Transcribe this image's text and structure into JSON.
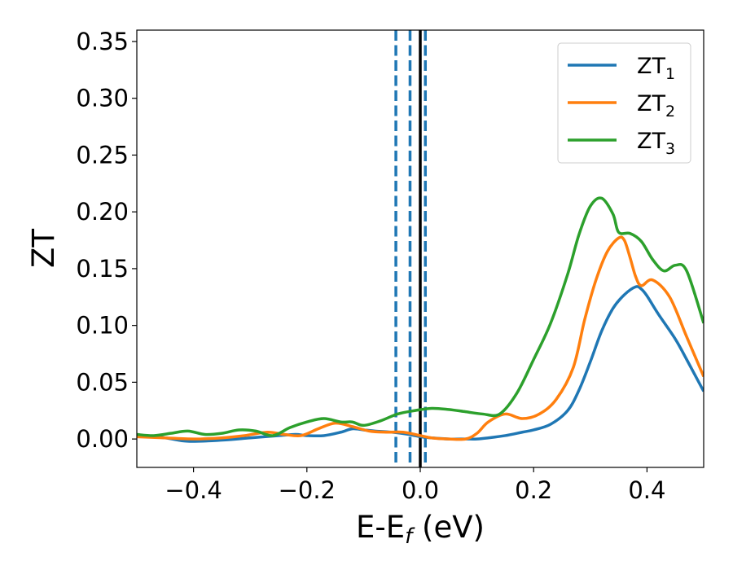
{
  "chart_data": {
    "type": "line",
    "xlabel": "E-E",
    "xlabel_subscript": "f",
    "xlabel_suffix": " (eV)",
    "ylabel": "ZT",
    "xlim": [
      -0.5,
      0.5
    ],
    "ylim": [
      -0.025,
      0.36
    ],
    "x_ticks": [
      -0.4,
      -0.2,
      0.0,
      0.2,
      0.4
    ],
    "x_tick_labels": [
      "−0.4",
      "−0.2",
      "0.0",
      "0.2",
      "0.4"
    ],
    "y_ticks": [
      0.0,
      0.05,
      0.1,
      0.15,
      0.2,
      0.25,
      0.3,
      0.35
    ],
    "y_tick_labels": [
      "0.00",
      "0.05",
      "0.10",
      "0.15",
      "0.20",
      "0.25",
      "0.30",
      "0.35"
    ],
    "grid": false,
    "legend_position": "top-right",
    "vertical_lines": [
      {
        "x": -0.043,
        "style": "dashed",
        "color": "#1f77b4"
      },
      {
        "x": -0.018,
        "style": "dashed",
        "color": "#1f77b4"
      },
      {
        "x": 0.009,
        "style": "dashed",
        "color": "#1f77b4"
      },
      {
        "x": 0.0,
        "style": "solid",
        "color": "#000000"
      }
    ],
    "series": [
      {
        "name": "ZT",
        "subscript": "1",
        "color": "#1f77b4",
        "x": [
          -0.5,
          -0.45,
          -0.41,
          -0.35,
          -0.3,
          -0.25,
          -0.22,
          -0.2,
          -0.17,
          -0.14,
          -0.12,
          -0.1,
          -0.08,
          -0.05,
          -0.02,
          0.0,
          0.02,
          0.05,
          0.08,
          0.1,
          0.12,
          0.15,
          0.18,
          0.2,
          0.23,
          0.26,
          0.28,
          0.3,
          0.32,
          0.34,
          0.36,
          0.38,
          0.39,
          0.4,
          0.42,
          0.45,
          0.47,
          0.5
        ],
        "y": [
          0.003,
          0.001,
          -0.002,
          -0.001,
          0.001,
          0.003,
          0.004,
          0.003,
          0.003,
          0.006,
          0.009,
          0.008,
          0.007,
          0.006,
          0.004,
          0.002,
          0.001,
          0.0,
          0.0,
          0.0,
          0.001,
          0.003,
          0.006,
          0.008,
          0.013,
          0.025,
          0.043,
          0.068,
          0.095,
          0.115,
          0.127,
          0.134,
          0.132,
          0.126,
          0.11,
          0.088,
          0.07,
          0.042
        ]
      },
      {
        "name": "ZT",
        "subscript": "2",
        "color": "#ff7f0e",
        "x": [
          -0.5,
          -0.45,
          -0.4,
          -0.35,
          -0.31,
          -0.27,
          -0.24,
          -0.21,
          -0.18,
          -0.15,
          -0.12,
          -0.09,
          -0.06,
          -0.03,
          0.0,
          0.02,
          0.05,
          0.08,
          0.1,
          0.12,
          0.15,
          0.18,
          0.21,
          0.24,
          0.27,
          0.29,
          0.31,
          0.33,
          0.35,
          0.36,
          0.37,
          0.38,
          0.39,
          0.41,
          0.44,
          0.47,
          0.5
        ],
        "y": [
          0.002,
          0.001,
          0.0,
          0.001,
          0.003,
          0.006,
          0.004,
          0.003,
          0.009,
          0.014,
          0.011,
          0.007,
          0.006,
          0.006,
          0.003,
          0.001,
          0.0,
          0.0,
          0.005,
          0.015,
          0.022,
          0.018,
          0.022,
          0.035,
          0.063,
          0.105,
          0.14,
          0.165,
          0.177,
          0.175,
          0.16,
          0.143,
          0.135,
          0.14,
          0.125,
          0.09,
          0.055
        ]
      },
      {
        "name": "ZT",
        "subscript": "3",
        "color": "#2ca02c",
        "x": [
          -0.5,
          -0.47,
          -0.44,
          -0.41,
          -0.38,
          -0.35,
          -0.32,
          -0.29,
          -0.26,
          -0.23,
          -0.2,
          -0.17,
          -0.14,
          -0.12,
          -0.1,
          -0.07,
          -0.04,
          -0.01,
          0.02,
          0.05,
          0.08,
          0.11,
          0.14,
          0.17,
          0.2,
          0.23,
          0.26,
          0.28,
          0.3,
          0.32,
          0.34,
          0.35,
          0.37,
          0.39,
          0.41,
          0.43,
          0.45,
          0.47,
          0.5
        ],
        "y": [
          0.004,
          0.003,
          0.005,
          0.007,
          0.004,
          0.005,
          0.008,
          0.007,
          0.003,
          0.01,
          0.015,
          0.018,
          0.015,
          0.015,
          0.012,
          0.016,
          0.022,
          0.025,
          0.027,
          0.026,
          0.024,
          0.022,
          0.022,
          0.04,
          0.07,
          0.102,
          0.145,
          0.18,
          0.205,
          0.212,
          0.198,
          0.182,
          0.181,
          0.174,
          0.158,
          0.148,
          0.153,
          0.148,
          0.102
        ]
      }
    ]
  }
}
